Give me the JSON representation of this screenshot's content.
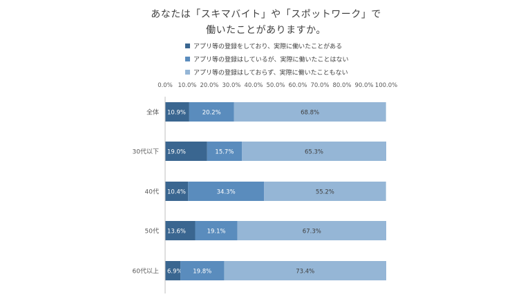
{
  "chart_data": {
    "type": "bar",
    "orientation": "horizontal",
    "stacked": true,
    "title_lines": [
      "あなたは「スキマバイト」や「スポットワーク」で",
      "働いたことがありますか。"
    ],
    "categories": [
      "全体",
      "30代以下",
      "40代",
      "50代",
      "60代以上"
    ],
    "series": [
      {
        "name": "アプリ等の登録をしており、実際に働いたことがある",
        "color": "#3a6690",
        "values": [
          10.9,
          19.0,
          10.4,
          13.6,
          6.9
        ]
      },
      {
        "name": "アプリ等の登録はしているが、実際に働いたことはない",
        "color": "#5a8cbd",
        "values": [
          20.2,
          15.7,
          34.3,
          19.1,
          19.8
        ]
      },
      {
        "name": "アプリ等の登録はしておらず、実際に働いたこともない",
        "color": "#95b6d6",
        "values": [
          68.8,
          65.3,
          55.2,
          67.3,
          73.4
        ]
      }
    ],
    "x_ticks": [
      "0.0%",
      "10.0%",
      "20.0%",
      "30.0%",
      "40.0%",
      "50.0%",
      "60.0%",
      "70.0%",
      "80.0%",
      "90.0%",
      "100.0%"
    ],
    "xlim": [
      0,
      100
    ],
    "value_suffix": "%",
    "legend_position": "top",
    "grid": false
  }
}
